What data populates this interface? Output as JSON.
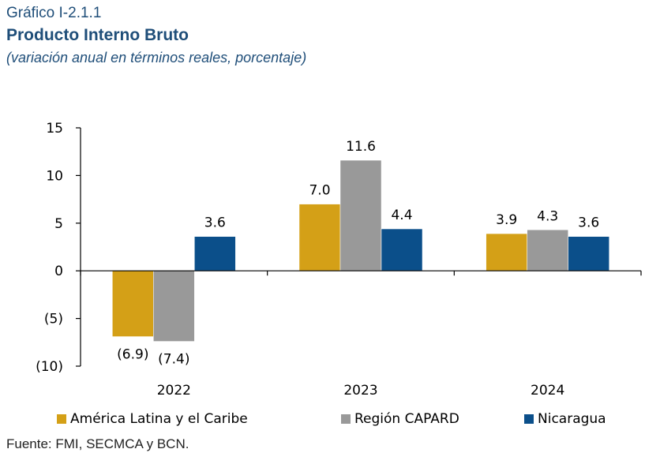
{
  "header": {
    "kicker": "Gráfico I-2.1.1",
    "title": "Producto Interno Bruto",
    "subtitle": "(variación anual en términos reales, porcentaje)"
  },
  "source": "Fuente: FMI, SECMCA y BCN.",
  "chart_data": {
    "type": "bar",
    "categories": [
      "2022",
      "2023",
      "2024"
    ],
    "series": [
      {
        "name": "América Latina y el Caribe",
        "color": "#d4a017",
        "values": [
          -6.9,
          7.0,
          3.9
        ],
        "labels": [
          "(6.9)",
          "7.0",
          "3.9"
        ]
      },
      {
        "name": "Región CAPARD",
        "color": "#999999",
        "values": [
          -7.4,
          11.6,
          4.3
        ],
        "labels": [
          "(7.4)",
          "11.6",
          "4.3"
        ]
      },
      {
        "name": "Nicaragua",
        "color": "#0b4f8a",
        "values": [
          3.6,
          4.4,
          3.6
        ],
        "labels": [
          "3.6",
          "4.4",
          "3.6"
        ]
      }
    ],
    "ylim": [
      -10,
      15
    ],
    "yticks": [
      15,
      10,
      5,
      0,
      -5,
      -10
    ],
    "ytick_labels": [
      "15",
      "10",
      "5",
      "0",
      "(5)",
      "(10)"
    ],
    "grid": false,
    "legend": "bottom",
    "xlabel": "",
    "ylabel": ""
  }
}
